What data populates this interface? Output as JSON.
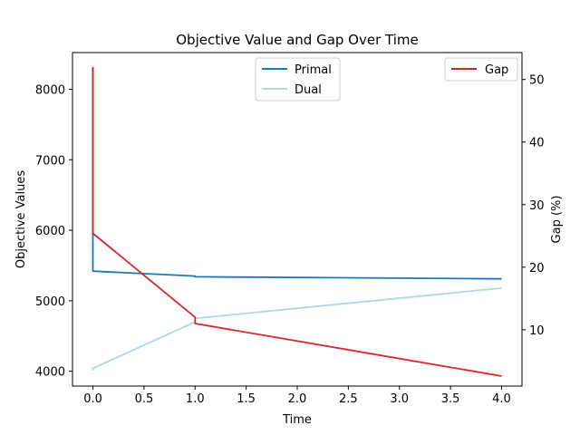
{
  "chart_data": {
    "type": "line",
    "title": "Objective Value and Gap Over Time",
    "xlabel": "Time",
    "ylabel_left": "Objective Values",
    "ylabel_right": "Gap (%)",
    "xlim": [
      -0.2,
      4.2
    ],
    "ylim_left": [
      3790,
      8520
    ],
    "ylim_right": [
      1.0,
      54.3
    ],
    "x_ticks": [
      0.0,
      0.5,
      1.0,
      1.5,
      2.0,
      2.5,
      3.0,
      3.5,
      4.0
    ],
    "x_tick_labels": [
      "0.0",
      "0.5",
      "1.0",
      "1.5",
      "2.0",
      "2.5",
      "3.0",
      "3.5",
      "4.0"
    ],
    "y_left_ticks": [
      4000,
      5000,
      6000,
      7000,
      8000
    ],
    "y_left_tick_labels": [
      "4000",
      "5000",
      "6000",
      "7000",
      "8000"
    ],
    "y_right_ticks": [
      10,
      20,
      30,
      40,
      50
    ],
    "y_right_tick_labels": [
      "10",
      "20",
      "30",
      "40",
      "50"
    ],
    "grid": false,
    "series": [
      {
        "name": "Primal",
        "axis": "left",
        "color": "#1f77b4",
        "x": [
          0.0,
          0.0,
          0.0,
          1.0,
          1.0,
          4.0
        ],
        "y": [
          8300,
          6000,
          5420,
          5350,
          5340,
          5310
        ]
      },
      {
        "name": "Dual",
        "axis": "left",
        "color": "#add8e6",
        "x": [
          0.0,
          0.0,
          1.0,
          1.0,
          4.0
        ],
        "y": [
          4010,
          4040,
          4700,
          4750,
          5180
        ]
      },
      {
        "name": "Gap",
        "axis": "right",
        "color": "#d62728",
        "x": [
          0.0,
          0.0,
          1.0,
          1.0,
          4.0
        ],
        "y": [
          52.0,
          25.4,
          12.0,
          11.0,
          2.6
        ]
      }
    ],
    "legends": [
      {
        "placement": "top-center",
        "entries": [
          "Primal",
          "Dual"
        ]
      },
      {
        "placement": "top-right",
        "entries": [
          "Gap"
        ]
      }
    ]
  }
}
